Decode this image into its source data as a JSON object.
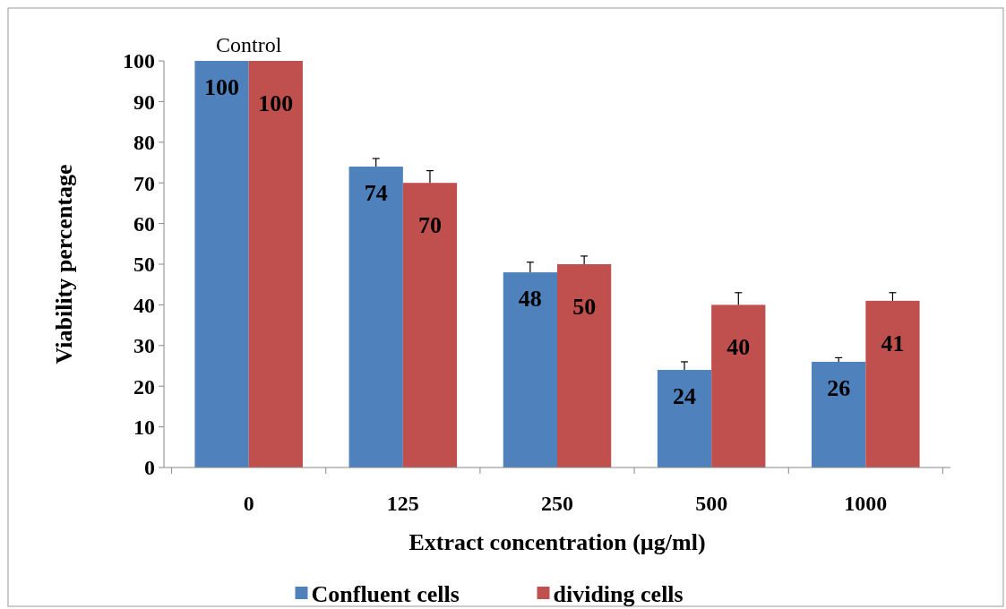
{
  "chart_data": {
    "type": "bar",
    "xlabel": "Extract concentration (µg/ml)",
    "ylabel": "Viability percentage",
    "categories": [
      "0",
      "125",
      "250",
      "500",
      "1000"
    ],
    "series": [
      {
        "name": "Confluent cells",
        "color": "#4f81bd",
        "values": [
          100,
          74,
          48,
          24,
          26
        ],
        "errors": [
          null,
          [
            74,
            76
          ],
          [
            48,
            50.5
          ],
          [
            24,
            26
          ],
          [
            26,
            27
          ]
        ]
      },
      {
        "name": "dividing cells",
        "color": "#c0504d",
        "values": [
          100,
          70,
          50,
          40,
          41
        ],
        "errors": [
          null,
          [
            70,
            73
          ],
          [
            50,
            52
          ],
          [
            40,
            43
          ],
          [
            41,
            43
          ]
        ]
      }
    ],
    "ylim": [
      0,
      100
    ],
    "yticks": [
      0,
      10,
      20,
      30,
      40,
      50,
      60,
      70,
      80,
      90,
      100
    ],
    "annotations": [
      {
        "text": "Control",
        "x": "0",
        "y": 100
      }
    ],
    "data_labels": true,
    "legend": "bottom",
    "grid": false
  }
}
